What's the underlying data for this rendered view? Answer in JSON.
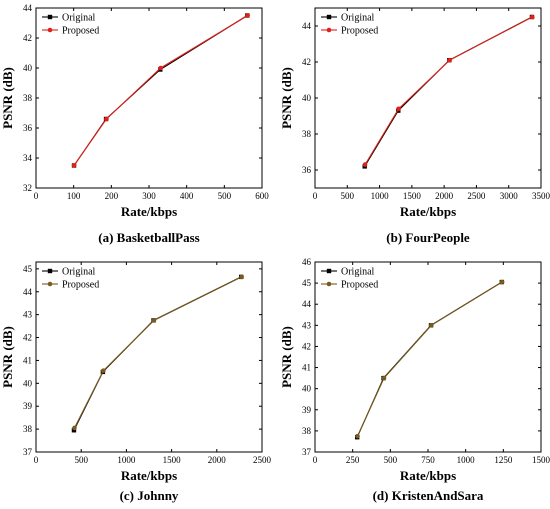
{
  "chart_data": [
    {
      "type": "line",
      "caption": "(a) BasketballPass",
      "xlabel": "Rate/kbps",
      "ylabel": "PSNR (dB)",
      "xlim": [
        0,
        600
      ],
      "ylim": [
        32,
        44
      ],
      "xticks": [
        0,
        100,
        200,
        300,
        400,
        500,
        600
      ],
      "yticks": [
        32,
        34,
        36,
        38,
        40,
        42,
        44
      ],
      "legend_position": "top-left",
      "grid": false,
      "series": [
        {
          "name": "Original",
          "color": "#000000",
          "marker": "square",
          "x": [
            101,
            186,
            330,
            561
          ],
          "y": [
            33.5,
            36.6,
            39.9,
            43.5
          ]
        },
        {
          "name": "Proposed",
          "color": "#e0201a",
          "marker": "circle",
          "x": [
            101,
            187,
            331,
            562
          ],
          "y": [
            33.5,
            36.6,
            40.0,
            43.5
          ]
        }
      ]
    },
    {
      "type": "line",
      "caption": "(b) FourPeople",
      "xlabel": "Rate/kbps",
      "ylabel": "PSNR (dB)",
      "xlim": [
        0,
        3500
      ],
      "ylim": [
        35,
        45
      ],
      "xticks": [
        0,
        500,
        1000,
        1500,
        2000,
        2500,
        3000,
        3500
      ],
      "yticks": [
        36,
        38,
        40,
        42,
        44
      ],
      "legend_position": "top-left",
      "grid": false,
      "series": [
        {
          "name": "Original",
          "color": "#000000",
          "marker": "square",
          "x": [
            770,
            1290,
            2080,
            3360
          ],
          "y": [
            36.2,
            39.3,
            42.1,
            44.5
          ]
        },
        {
          "name": "Proposed",
          "color": "#e0201a",
          "marker": "circle",
          "x": [
            775,
            1295,
            2085,
            3365
          ],
          "y": [
            36.3,
            39.4,
            42.1,
            44.5
          ]
        }
      ]
    },
    {
      "type": "line",
      "caption": "(c) Johnny",
      "xlabel": "Rate/kbps",
      "ylabel": "PSNR (dB)",
      "xlim": [
        0,
        2500
      ],
      "ylim": [
        37,
        45.3
      ],
      "xticks": [
        0,
        500,
        1000,
        1500,
        2000,
        2500
      ],
      "yticks": [
        37,
        38,
        39,
        40,
        41,
        42,
        43,
        44,
        45
      ],
      "legend_position": "top-left",
      "grid": false,
      "series": [
        {
          "name": "Original",
          "color": "#000000",
          "marker": "square",
          "x": [
            420,
            740,
            1300,
            2270
          ],
          "y": [
            37.95,
            40.5,
            42.75,
            44.65
          ]
        },
        {
          "name": "Proposed",
          "color": "#7a5a1e",
          "marker": "circle",
          "x": [
            425,
            745,
            1305,
            2275
          ],
          "y": [
            38.05,
            40.55,
            42.75,
            44.65
          ]
        }
      ]
    },
    {
      "type": "line",
      "caption": "(d) KristenAndSara",
      "xlabel": "Rate/kbps",
      "ylabel": "PSNR (dB)",
      "xlim": [
        0,
        1500
      ],
      "ylim": [
        37,
        46
      ],
      "xticks": [
        0,
        250,
        500,
        750,
        1000,
        1250,
        1500
      ],
      "yticks": [
        37,
        38,
        39,
        40,
        41,
        42,
        43,
        44,
        45,
        46
      ],
      "legend_position": "top-left",
      "grid": false,
      "series": [
        {
          "name": "Original",
          "color": "#000000",
          "marker": "square",
          "x": [
            280,
            455,
            770,
            1240
          ],
          "y": [
            37.7,
            40.5,
            43.0,
            45.05
          ]
        },
        {
          "name": "Proposed",
          "color": "#7a5a1e",
          "marker": "circle",
          "x": [
            282,
            458,
            772,
            1242
          ],
          "y": [
            37.75,
            40.5,
            43.0,
            45.05
          ]
        }
      ]
    }
  ]
}
